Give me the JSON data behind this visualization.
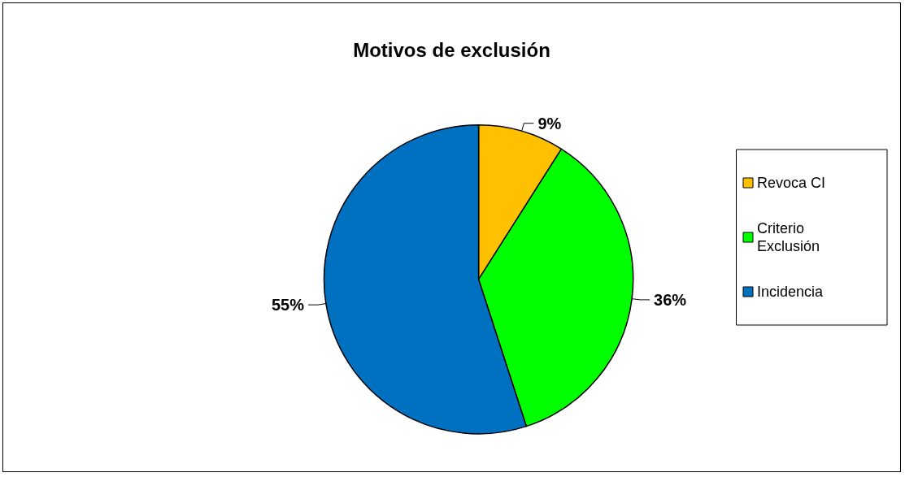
{
  "chart_data": {
    "type": "pie",
    "title": "Motivos de exclusión",
    "categories": [
      "Revoca CI",
      "Criterio Exclusión",
      "Incidencia"
    ],
    "values": [
      9,
      36,
      55
    ],
    "colors": [
      "#ffc000",
      "#00ff00",
      "#0070c0"
    ],
    "value_labels": [
      "9%",
      "36%",
      "55%"
    ],
    "legend": "right"
  }
}
